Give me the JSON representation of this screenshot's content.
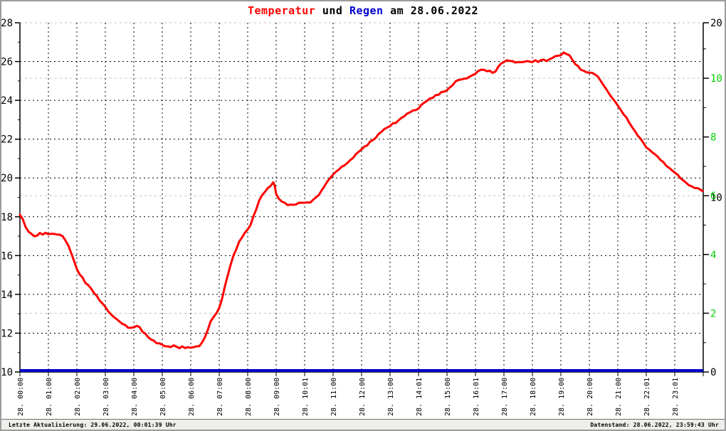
{
  "title": {
    "full": "Temperatur und Regen am 28.06.2022",
    "segments": [
      {
        "text": "Temperatur ",
        "color": "#ff0000"
      },
      {
        "text": "und ",
        "color": "#000000"
      },
      {
        "text": "Regen ",
        "color": "#0000cc"
      },
      {
        "text": "am 28.06.2022",
        "color": "#000000"
      }
    ]
  },
  "status_bar": {
    "left": "Letzte Aktualisierung: 29.06.2022, 00:01:39 Uhr",
    "right": "Datenstand: 28.06.2022, 23:59:43 Uhr"
  },
  "colors": {
    "temperature": "#ff0000",
    "rain": "#0000cc",
    "green_axis": "#00d200",
    "grid_black": "#000000",
    "grid_gray": "#c0c0c0",
    "background": "#ffffff"
  },
  "chart_data": {
    "type": "line",
    "title": "Temperatur und Regen am 28.06.2022",
    "grid": true,
    "x_axis": {
      "unit": "hours",
      "range": [
        0,
        24
      ],
      "tick_labels": [
        "28. 00:00",
        "28. 01:00",
        "28. 02:00",
        "28. 03:00",
        "28. 04:00",
        "28. 05:00",
        "28. 06:00",
        "28. 07:00",
        "28. 08:00",
        "28. 09:00",
        "28. 10:01",
        "28. 11:00",
        "28. 12:00",
        "28. 13:00",
        "28. 14:01",
        "28. 15:00",
        "28. 16:01",
        "28. 17:00",
        "28. 18:00",
        "28. 19:00",
        "28. 20:00",
        "28. 21:00",
        "28. 22:01",
        "28. 23:01"
      ]
    },
    "y_axis_left": {
      "label": "Temperatur",
      "range": [
        10,
        28
      ],
      "tick_labels": [
        28,
        26,
        24,
        22,
        20,
        18,
        16,
        14,
        12,
        10
      ],
      "color": "#000000"
    },
    "y_axis_right_black": {
      "range": [
        0,
        20
      ],
      "tick_labels": [
        20,
        10,
        0
      ],
      "color": "#000000"
    },
    "y_axis_right_green": {
      "label": "Regen",
      "range": [
        0,
        12
      ],
      "tick_labels": [
        10,
        8,
        6,
        4,
        2
      ],
      "color": "#00d200"
    },
    "series": [
      {
        "name": "Temperatur",
        "color": "#ff0000",
        "axis": "left",
        "points": [
          [
            0.0,
            18.1
          ],
          [
            0.1,
            17.9
          ],
          [
            0.2,
            17.45
          ],
          [
            0.3,
            17.25
          ],
          [
            0.4,
            17.1
          ],
          [
            0.5,
            17.0
          ],
          [
            0.6,
            17.05
          ],
          [
            0.7,
            17.15
          ],
          [
            0.8,
            17.1
          ],
          [
            0.9,
            17.15
          ],
          [
            1.0,
            17.1
          ],
          [
            1.1,
            17.15
          ],
          [
            1.2,
            17.1
          ],
          [
            1.3,
            17.1
          ],
          [
            1.4,
            17.05
          ],
          [
            1.5,
            17.0
          ],
          [
            1.6,
            16.8
          ],
          [
            1.7,
            16.5
          ],
          [
            1.8,
            16.15
          ],
          [
            1.9,
            15.7
          ],
          [
            2.0,
            15.3
          ],
          [
            2.1,
            15.05
          ],
          [
            2.2,
            14.85
          ],
          [
            2.3,
            14.6
          ],
          [
            2.4,
            14.45
          ],
          [
            2.5,
            14.3
          ],
          [
            2.6,
            14.1
          ],
          [
            2.7,
            13.9
          ],
          [
            2.8,
            13.7
          ],
          [
            2.9,
            13.5
          ],
          [
            3.0,
            13.35
          ],
          [
            3.1,
            13.15
          ],
          [
            3.2,
            12.95
          ],
          [
            3.3,
            12.85
          ],
          [
            3.4,
            12.7
          ],
          [
            3.5,
            12.6
          ],
          [
            3.6,
            12.5
          ],
          [
            3.7,
            12.4
          ],
          [
            3.8,
            12.3
          ],
          [
            3.9,
            12.25
          ],
          [
            4.0,
            12.3
          ],
          [
            4.1,
            12.4
          ],
          [
            4.2,
            12.3
          ],
          [
            4.3,
            12.1
          ],
          [
            4.4,
            11.95
          ],
          [
            4.5,
            11.8
          ],
          [
            4.6,
            11.7
          ],
          [
            4.7,
            11.6
          ],
          [
            4.8,
            11.5
          ],
          [
            4.9,
            11.45
          ],
          [
            5.0,
            11.4
          ],
          [
            5.1,
            11.35
          ],
          [
            5.2,
            11.3
          ],
          [
            5.3,
            11.3
          ],
          [
            5.4,
            11.35
          ],
          [
            5.5,
            11.3
          ],
          [
            5.6,
            11.25
          ],
          [
            5.7,
            11.3
          ],
          [
            5.8,
            11.25
          ],
          [
            5.9,
            11.25
          ],
          [
            6.0,
            11.25
          ],
          [
            6.1,
            11.3
          ],
          [
            6.2,
            11.3
          ],
          [
            6.3,
            11.35
          ],
          [
            6.4,
            11.5
          ],
          [
            6.5,
            11.8
          ],
          [
            6.6,
            12.2
          ],
          [
            6.7,
            12.6
          ],
          [
            6.8,
            12.85
          ],
          [
            6.9,
            13.0
          ],
          [
            7.0,
            13.3
          ],
          [
            7.1,
            13.8
          ],
          [
            7.2,
            14.4
          ],
          [
            7.3,
            15.0
          ],
          [
            7.4,
            15.5
          ],
          [
            7.5,
            16.0
          ],
          [
            7.6,
            16.35
          ],
          [
            7.7,
            16.7
          ],
          [
            7.8,
            16.95
          ],
          [
            7.9,
            17.15
          ],
          [
            8.0,
            17.35
          ],
          [
            8.1,
            17.6
          ],
          [
            8.2,
            18.0
          ],
          [
            8.3,
            18.4
          ],
          [
            8.4,
            18.8
          ],
          [
            8.5,
            19.1
          ],
          [
            8.6,
            19.3
          ],
          [
            8.7,
            19.45
          ],
          [
            8.8,
            19.6
          ],
          [
            8.9,
            19.75
          ],
          [
            8.95,
            19.6
          ],
          [
            9.0,
            19.2
          ],
          [
            9.1,
            18.9
          ],
          [
            9.2,
            18.8
          ],
          [
            9.3,
            18.7
          ],
          [
            9.4,
            18.6
          ],
          [
            9.5,
            18.65
          ],
          [
            9.6,
            18.6
          ],
          [
            9.7,
            18.65
          ],
          [
            9.8,
            18.7
          ],
          [
            9.9,
            18.72
          ],
          [
            10.0,
            18.75
          ],
          [
            10.1,
            18.72
          ],
          [
            10.2,
            18.75
          ],
          [
            10.3,
            18.85
          ],
          [
            10.4,
            19.0
          ],
          [
            10.5,
            19.15
          ],
          [
            10.6,
            19.35
          ],
          [
            10.7,
            19.6
          ],
          [
            10.8,
            19.8
          ],
          [
            10.9,
            20.0
          ],
          [
            11.0,
            20.2
          ],
          [
            11.1,
            20.3
          ],
          [
            11.2,
            20.45
          ],
          [
            11.3,
            20.55
          ],
          [
            11.4,
            20.65
          ],
          [
            11.5,
            20.8
          ],
          [
            11.6,
            20.9
          ],
          [
            11.7,
            21.05
          ],
          [
            11.8,
            21.2
          ],
          [
            11.9,
            21.35
          ],
          [
            12.0,
            21.5
          ],
          [
            12.1,
            21.6
          ],
          [
            12.2,
            21.7
          ],
          [
            12.3,
            21.85
          ],
          [
            12.4,
            21.95
          ],
          [
            12.5,
            22.1
          ],
          [
            12.6,
            22.25
          ],
          [
            12.7,
            22.4
          ],
          [
            12.8,
            22.5
          ],
          [
            12.9,
            22.6
          ],
          [
            13.0,
            22.7
          ],
          [
            13.1,
            22.8
          ],
          [
            13.2,
            22.85
          ],
          [
            13.3,
            22.95
          ],
          [
            13.4,
            23.1
          ],
          [
            13.5,
            23.2
          ],
          [
            13.6,
            23.3
          ],
          [
            13.7,
            23.4
          ],
          [
            13.8,
            23.45
          ],
          [
            13.9,
            23.5
          ],
          [
            14.0,
            23.6
          ],
          [
            14.1,
            23.75
          ],
          [
            14.2,
            23.9
          ],
          [
            14.3,
            23.95
          ],
          [
            14.4,
            24.1
          ],
          [
            14.5,
            24.15
          ],
          [
            14.6,
            24.25
          ],
          [
            14.7,
            24.3
          ],
          [
            14.8,
            24.4
          ],
          [
            14.9,
            24.45
          ],
          [
            15.0,
            24.55
          ],
          [
            15.1,
            24.65
          ],
          [
            15.2,
            24.8
          ],
          [
            15.3,
            24.95
          ],
          [
            15.4,
            25.05
          ],
          [
            15.5,
            25.1
          ],
          [
            15.6,
            25.1
          ],
          [
            15.7,
            25.15
          ],
          [
            15.8,
            25.2
          ],
          [
            15.9,
            25.3
          ],
          [
            16.0,
            25.4
          ],
          [
            16.1,
            25.5
          ],
          [
            16.2,
            25.6
          ],
          [
            16.3,
            25.55
          ],
          [
            16.4,
            25.5
          ],
          [
            16.5,
            25.55
          ],
          [
            16.6,
            25.4
          ],
          [
            16.7,
            25.5
          ],
          [
            16.8,
            25.7
          ],
          [
            16.9,
            25.9
          ],
          [
            17.0,
            26.0
          ],
          [
            17.1,
            26.05
          ],
          [
            17.2,
            26.05
          ],
          [
            17.3,
            26.0
          ],
          [
            17.4,
            25.95
          ],
          [
            17.5,
            26.0
          ],
          [
            17.6,
            25.95
          ],
          [
            17.7,
            26.0
          ],
          [
            17.8,
            26.0
          ],
          [
            17.9,
            26.0
          ],
          [
            18.0,
            26.0
          ],
          [
            18.1,
            26.05
          ],
          [
            18.2,
            26.0
          ],
          [
            18.3,
            26.05
          ],
          [
            18.4,
            26.1
          ],
          [
            18.5,
            26.05
          ],
          [
            18.6,
            26.1
          ],
          [
            18.7,
            26.2
          ],
          [
            18.8,
            26.25
          ],
          [
            18.9,
            26.3
          ],
          [
            19.0,
            26.35
          ],
          [
            19.1,
            26.45
          ],
          [
            19.2,
            26.4
          ],
          [
            19.3,
            26.3
          ],
          [
            19.4,
            26.1
          ],
          [
            19.5,
            25.9
          ],
          [
            19.6,
            25.75
          ],
          [
            19.7,
            25.6
          ],
          [
            19.8,
            25.5
          ],
          [
            19.9,
            25.45
          ],
          [
            20.0,
            25.45
          ],
          [
            20.1,
            25.4
          ],
          [
            20.2,
            25.35
          ],
          [
            20.3,
            25.2
          ],
          [
            20.4,
            25.0
          ],
          [
            20.5,
            24.8
          ],
          [
            20.6,
            24.55
          ],
          [
            20.7,
            24.35
          ],
          [
            20.8,
            24.1
          ],
          [
            20.9,
            23.95
          ],
          [
            21.0,
            23.75
          ],
          [
            21.1,
            23.5
          ],
          [
            21.2,
            23.3
          ],
          [
            21.3,
            23.1
          ],
          [
            21.4,
            22.85
          ],
          [
            21.5,
            22.65
          ],
          [
            21.6,
            22.4
          ],
          [
            21.7,
            22.2
          ],
          [
            21.8,
            22.0
          ],
          [
            21.9,
            21.8
          ],
          [
            22.0,
            21.6
          ],
          [
            22.1,
            21.45
          ],
          [
            22.2,
            21.35
          ],
          [
            22.3,
            21.2
          ],
          [
            22.4,
            21.1
          ],
          [
            22.5,
            20.95
          ],
          [
            22.6,
            20.8
          ],
          [
            22.7,
            20.65
          ],
          [
            22.8,
            20.5
          ],
          [
            22.9,
            20.4
          ],
          [
            23.0,
            20.3
          ],
          [
            23.1,
            20.15
          ],
          [
            23.2,
            20.0
          ],
          [
            23.3,
            19.85
          ],
          [
            23.4,
            19.75
          ],
          [
            23.5,
            19.65
          ],
          [
            23.6,
            19.55
          ],
          [
            23.7,
            19.5
          ],
          [
            23.8,
            19.45
          ],
          [
            23.9,
            19.4
          ],
          [
            23.98,
            19.35
          ]
        ]
      },
      {
        "name": "Regen",
        "color": "#0000cc",
        "axis": "right_green",
        "constant_value": 0,
        "points": [
          [
            0,
            0
          ],
          [
            24,
            0
          ]
        ]
      }
    ]
  }
}
